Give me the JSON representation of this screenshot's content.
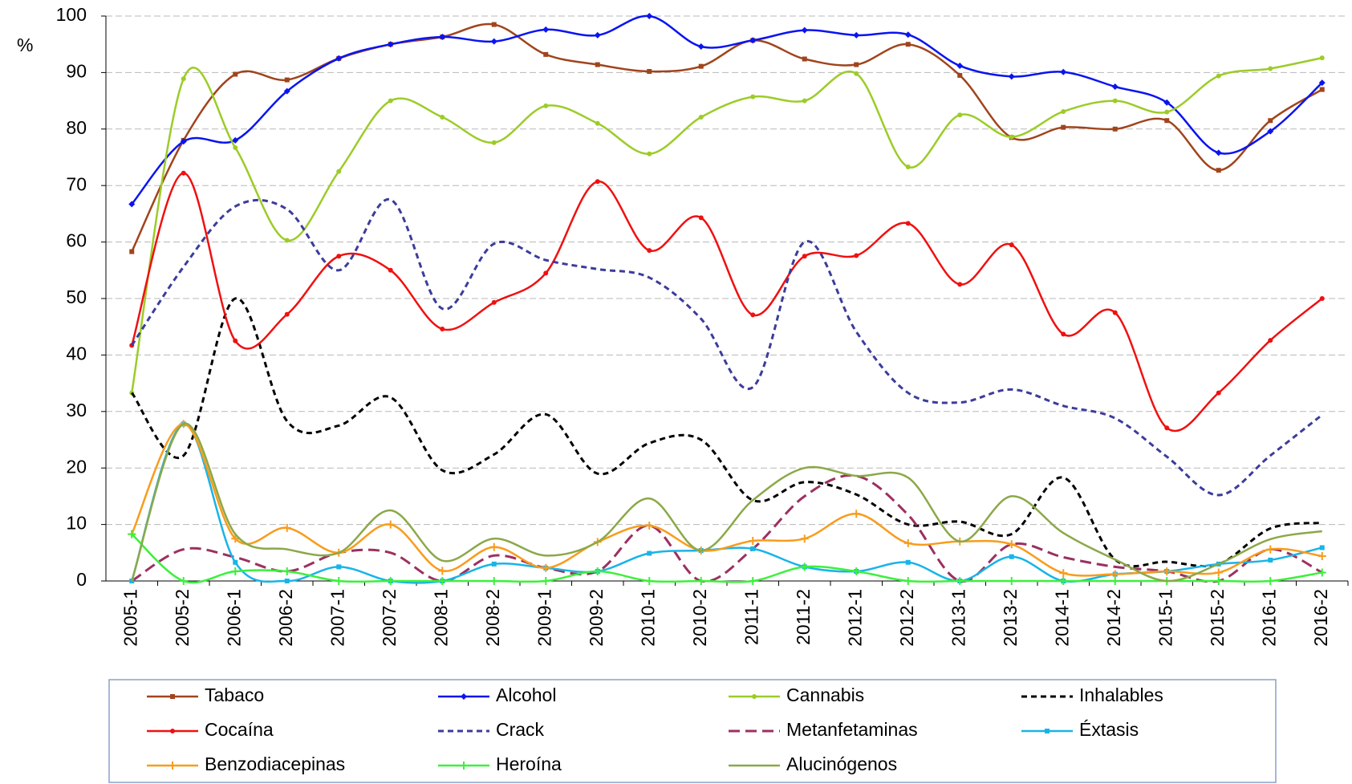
{
  "chart_data": {
    "type": "line",
    "y_label": "%",
    "categories": [
      "2005-1",
      "2005-2",
      "2006-1",
      "2006-2",
      "2007-1",
      "2007-2",
      "2008-1",
      "2008-2",
      "2009-1",
      "2009-2",
      "2010-1",
      "2010-2",
      "2011-1",
      "2011-2",
      "2012-1",
      "2012-2",
      "2013-1",
      "2013-2",
      "2014-1",
      "2014-2",
      "2015-1",
      "2015-2",
      "2016-1",
      "2016-2"
    ],
    "ylim": [
      0,
      100
    ],
    "yticks": [
      0,
      10,
      20,
      30,
      40,
      50,
      60,
      70,
      80,
      90,
      100
    ],
    "grid": true,
    "legend": "bottom",
    "smooth": true,
    "series": [
      {
        "name": "Tabaco",
        "color": "#a0441c",
        "dashed": false,
        "marker": "square",
        "values": [
          58.3,
          78,
          89.7,
          88.7,
          92.5,
          95,
          96.3,
          98.5,
          93.2,
          91.4,
          90.2,
          91.1,
          95.7,
          92.4,
          91.4,
          95,
          89.5,
          78.5,
          80.3,
          80,
          81.5,
          72.7,
          81.5,
          87
        ]
      },
      {
        "name": "Alcohol",
        "color": "#0a14f0",
        "dashed": false,
        "marker": "diamond",
        "values": [
          66.7,
          77.8,
          78,
          86.7,
          92.5,
          95,
          96.3,
          95.5,
          97.6,
          96.6,
          100,
          94.6,
          95.7,
          97.5,
          96.6,
          96.7,
          91.2,
          89.3,
          90.1,
          87.5,
          84.7,
          75.8,
          79.6,
          88.2
        ]
      },
      {
        "name": "Cannabis",
        "color": "#9ccc28",
        "dashed": false,
        "marker": "circle",
        "values": [
          33.3,
          88.9,
          76.7,
          60.3,
          72.5,
          85,
          82.1,
          77.6,
          84.1,
          81,
          75.6,
          82.1,
          85.7,
          85,
          89.8,
          73.3,
          82.5,
          78.6,
          83.1,
          85,
          83,
          89.4,
          90.7,
          92.6
        ]
      },
      {
        "name": "Inhalables",
        "color": "#000000",
        "dashed": true,
        "marker": "none",
        "values": [
          33.3,
          22.2,
          50,
          28.3,
          27.5,
          32.5,
          19.6,
          22.4,
          29.5,
          19,
          24.4,
          25,
          14.3,
          17.5,
          15.3,
          10,
          10.5,
          8.3,
          18.3,
          3.8,
          3.4,
          3,
          9.3,
          10.3
        ]
      },
      {
        "name": "Cocaína",
        "color": "#f01010",
        "dashed": false,
        "marker": "circle",
        "values": [
          41.7,
          72.2,
          42.5,
          47.2,
          57.5,
          55,
          44.6,
          49.3,
          54.5,
          70.7,
          58.5,
          64.3,
          47.1,
          57.5,
          57.6,
          63.3,
          52.5,
          59.5,
          43.7,
          47.5,
          27.1,
          33.3,
          42.6,
          50
        ]
      },
      {
        "name": "Crack",
        "color": "#3c3c9c",
        "dashed": true,
        "marker": "none",
        "values": [
          41.7,
          55.6,
          66.3,
          65.8,
          55,
          67.5,
          48.2,
          59.7,
          56.8,
          55.2,
          53.7,
          46.4,
          34.3,
          60,
          44.1,
          33.3,
          31.6,
          33.9,
          31,
          28.8,
          22,
          15.2,
          22.2,
          29.4
        ]
      },
      {
        "name": "Metanfetaminas",
        "color": "#9c3060",
        "dashed": true,
        "marker": "none",
        "values": [
          0,
          5.6,
          4.2,
          1.7,
          5,
          5,
          0,
          4.5,
          2.3,
          1.7,
          9.8,
          0,
          5.7,
          15,
          18.6,
          11.7,
          0,
          6.5,
          4.2,
          2.5,
          1.7,
          0,
          5.6,
          1.5
        ]
      },
      {
        "name": "Éxtasis",
        "color": "#18b4e8",
        "dashed": false,
        "marker": "square",
        "values": [
          0,
          27.8,
          3.3,
          0,
          2.5,
          0,
          0,
          3,
          2.3,
          1.7,
          4.9,
          5.4,
          5.7,
          2.5,
          1.7,
          3.3,
          0,
          4.3,
          0,
          1.2,
          1.7,
          3,
          3.7,
          5.9
        ]
      },
      {
        "name": "Benzodiacepinas",
        "color": "#f89c1c",
        "dashed": false,
        "marker": "plus",
        "values": [
          8.3,
          27.8,
          7.5,
          9.4,
          5,
          10,
          1.8,
          6,
          2.3,
          6.9,
          9.8,
          5.4,
          7.1,
          7.5,
          11.9,
          6.7,
          7,
          6.5,
          1.4,
          1.2,
          1.7,
          1.5,
          5.6,
          4.4
        ]
      },
      {
        "name": "Heroína",
        "color": "#3cf03c",
        "dashed": false,
        "marker": "plus",
        "values": [
          8.3,
          0,
          1.7,
          1.7,
          0,
          0,
          0,
          0,
          0,
          1.7,
          0,
          0,
          0,
          2.5,
          1.7,
          0,
          0,
          0,
          0,
          0,
          0,
          0,
          0,
          1.5
        ]
      },
      {
        "name": "Alucinógenos",
        "color": "#8ca848",
        "dashed": false,
        "marker": "none",
        "values": [
          0,
          27.8,
          8.3,
          5.6,
          5,
          12.5,
          3.6,
          7.5,
          4.5,
          6.9,
          14.6,
          5.4,
          14.3,
          20,
          18.6,
          18.3,
          7,
          15,
          8.5,
          3.8,
          0,
          3,
          7.4,
          8.8
        ]
      }
    ]
  }
}
